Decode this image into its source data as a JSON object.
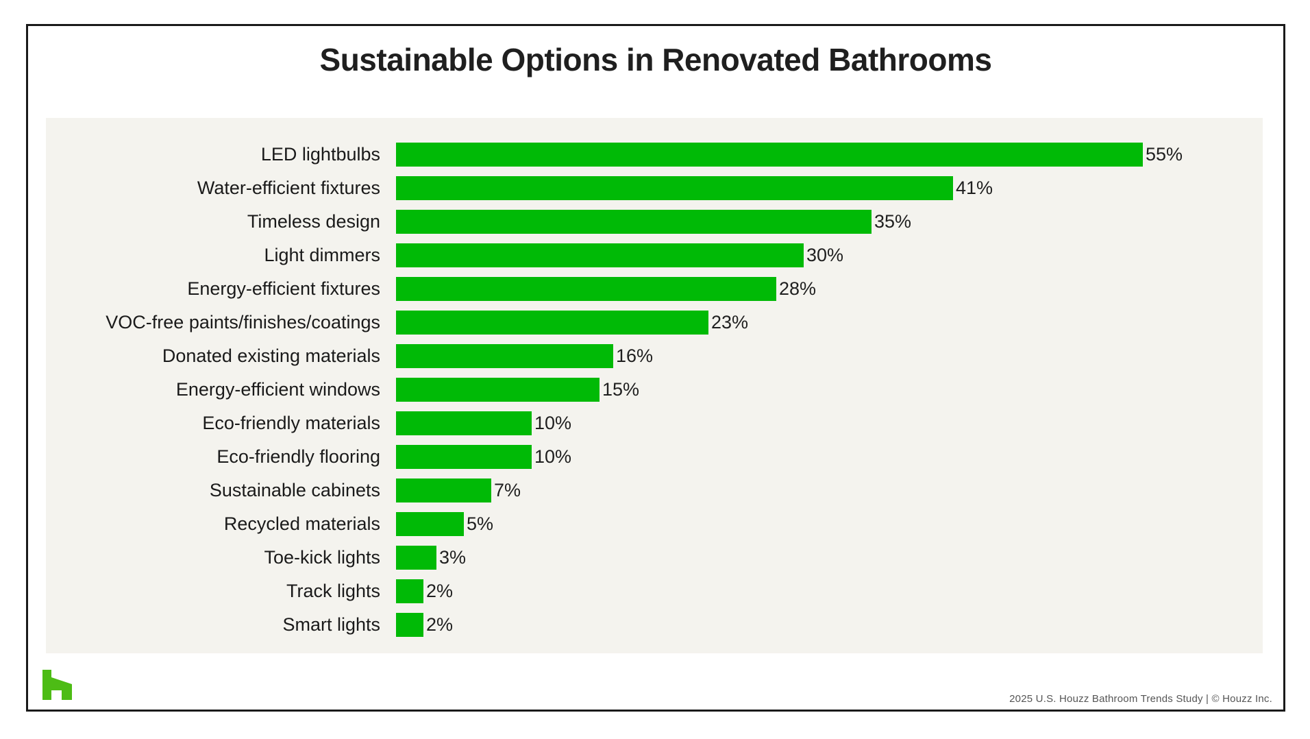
{
  "chart_data": {
    "type": "bar",
    "orientation": "horizontal",
    "title": "Sustainable Options in Renovated Bathrooms",
    "categories": [
      "LED lightbulbs",
      "Water-efficient fixtures",
      "Timeless design",
      "Light dimmers",
      "Energy-efficient fixtures",
      "VOC-free paints/finishes/coatings",
      "Donated existing materials",
      "Energy-efficient windows",
      "Eco-friendly materials",
      "Eco-friendly flooring",
      "Sustainable cabinets",
      "Recycled materials",
      "Toe-kick lights",
      "Track lights",
      "Smart lights"
    ],
    "values": [
      55,
      41,
      35,
      30,
      28,
      23,
      16,
      15,
      10,
      10,
      7,
      5,
      3,
      2,
      2
    ],
    "value_labels": [
      "55%",
      "41%",
      "35%",
      "30%",
      "28%",
      "23%",
      "16%",
      "15%",
      "10%",
      "10%",
      "7%",
      "5%",
      "3%",
      "2%",
      "2%"
    ],
    "unit": "%",
    "axis": "none",
    "grid": false,
    "legend": "none",
    "value_label_position": "end-of-bar",
    "bar_color": "#00ba06",
    "max_value_reference": 55
  },
  "footer": {
    "source_text": "2025 U.S. Houzz Bathroom Trends Study  |  © Houzz Inc.",
    "logo_name": "houzz-logo"
  },
  "colors": {
    "bar_green": "#00ba06",
    "houzz_brand_green": "#4dbc15",
    "panel_background": "#f4f3ee",
    "frame_border": "#1a1a1a",
    "title_text": "#1f1f1f",
    "footer_text": "#555555"
  }
}
